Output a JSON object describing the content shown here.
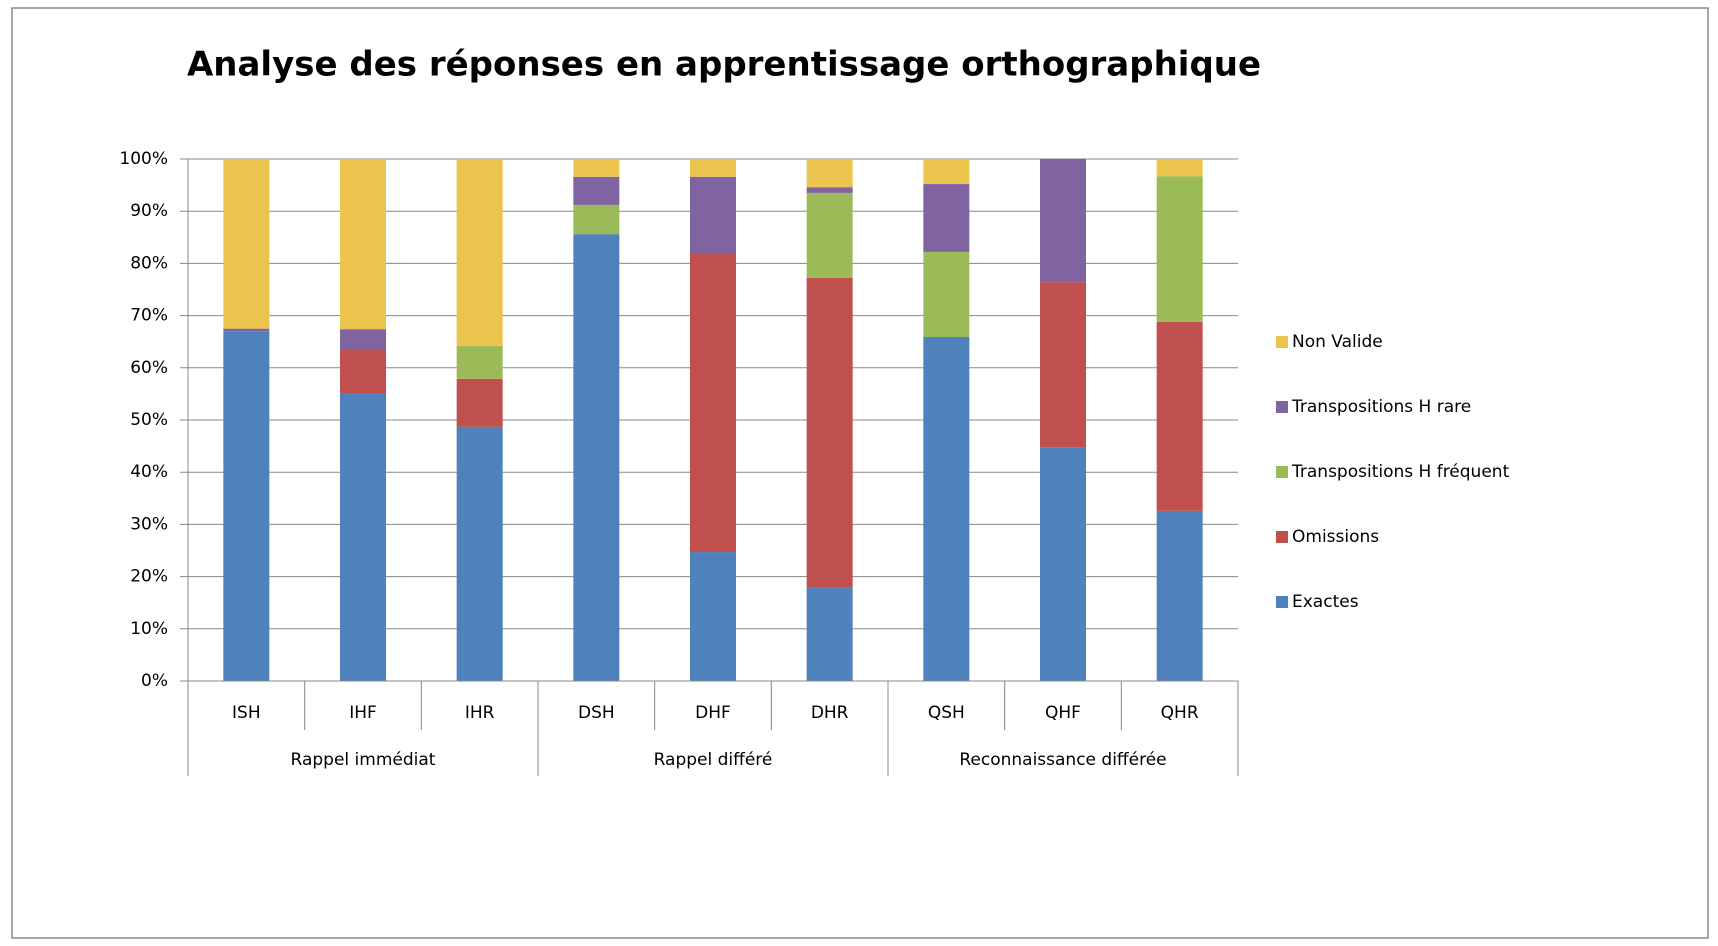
{
  "chart_data": {
    "type": "stacked_bar",
    "title": "Analyse des réponses en apprentissage orthographique",
    "categories": [
      "ISH",
      "IHF",
      "IHR",
      "DSH",
      "DHF",
      "DHR",
      "QSH",
      "QHF",
      "QHR"
    ],
    "groups": [
      {
        "name": "Rappel immédiat",
        "size": 3
      },
      {
        "name": "Rappel différé",
        "size": 3
      },
      {
        "name": "Reconnaissance différée",
        "size": 3
      }
    ],
    "series": [
      {
        "name": "Exactes",
        "color": "#4f81bd",
        "values": [
          67,
          55,
          48.7,
          85.6,
          24.7,
          18.0,
          65.9,
          44.8,
          32.6
        ]
      },
      {
        "name": "Omissions",
        "color": "#c0504d",
        "values": [
          0,
          8.6,
          9.2,
          0,
          57.1,
          59.2,
          0,
          31.6,
          36.2
        ]
      },
      {
        "name": "Transpositions H fréquent",
        "color": "#9bbb59",
        "values": [
          0,
          0,
          6.3,
          5.6,
          0,
          16.3,
          16.3,
          0,
          27.9
        ]
      },
      {
        "name": "Transpositions H rare",
        "color": "#8064a2",
        "values": [
          0.5,
          3.8,
          0,
          5.4,
          14.8,
          1.1,
          13.0,
          23.6,
          0
        ]
      },
      {
        "name": "Non Valide",
        "color": "#ebc44e",
        "values": [
          32.5,
          32.6,
          35.8,
          3.4,
          3.4,
          5.4,
          4.8,
          0,
          3.3
        ]
      }
    ],
    "ylim": [
      0,
      100
    ],
    "yticks": [
      {
        "value": 0,
        "label": "0%"
      },
      {
        "value": 10,
        "label": "10%"
      },
      {
        "value": 20,
        "label": "20%"
      },
      {
        "value": 30,
        "label": "30%"
      },
      {
        "value": 40,
        "label": "40%"
      },
      {
        "value": 50,
        "label": "50%"
      },
      {
        "value": 60,
        "label": "60%"
      },
      {
        "value": 70,
        "label": "70%"
      },
      {
        "value": 80,
        "label": "80%"
      },
      {
        "value": 90,
        "label": "90%"
      },
      {
        "value": 100,
        "label": "100%"
      }
    ],
    "grid": true,
    "legend": "right"
  }
}
